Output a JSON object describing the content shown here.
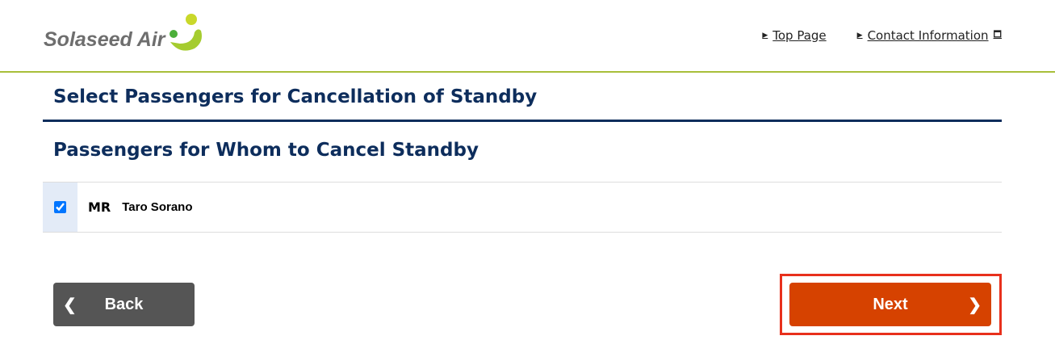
{
  "header": {
    "logo_text": "Solaseed Air",
    "links": [
      {
        "label": "Top Page"
      },
      {
        "label": "Contact Information"
      }
    ]
  },
  "page_title": "Select Passengers for Cancellation of Standby",
  "section_title": "Passengers for Whom to Cancel Standby",
  "passengers": [
    {
      "title": "MR",
      "name": "Taro Sorano",
      "checked": true
    }
  ],
  "buttons": {
    "back": "Back",
    "next": "Next"
  },
  "colors": {
    "accent": "#d64200",
    "navy": "#0d2d5c",
    "green": "#a8bf3a"
  }
}
